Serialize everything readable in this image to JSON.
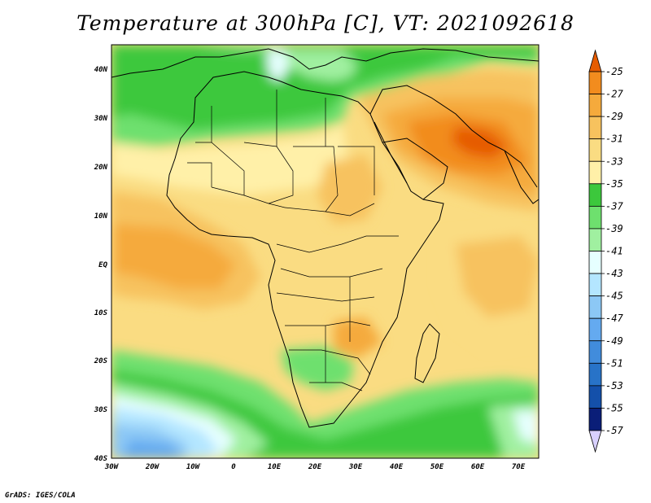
{
  "title": "Temperature at 300hPa [C], VT: 2021092618",
  "credit": "GrADS: IGES/COLA",
  "map": {
    "lon_labels": [
      "30W",
      "20W",
      "10W",
      "0",
      "10E",
      "20E",
      "30E",
      "40E",
      "50E",
      "60E",
      "70E"
    ],
    "lat_labels": [
      "40N",
      "30N",
      "20N",
      "10N",
      "EQ",
      "10S",
      "20S",
      "30S",
      "40S"
    ]
  },
  "colorbar": {
    "levels": [
      "-25",
      "-27",
      "-29",
      "-31",
      "-33",
      "-35",
      "-37",
      "-39",
      "-41",
      "-43",
      "-45",
      "-47",
      "-49",
      "-51",
      "-53",
      "-55",
      "-57"
    ],
    "colors": [
      "#e65c00",
      "#f28c1e",
      "#f5aa3c",
      "#f7c25e",
      "#fadc82",
      "#fff0a8",
      "#3cc83c",
      "#6ee06e",
      "#a0f0a0",
      "#e6ffff",
      "#b4e6ff",
      "#8cc8f5",
      "#64aaf0",
      "#418cdc",
      "#2873c8",
      "#1450aa",
      "#0a1e78",
      "#d8d0ff"
    ]
  }
}
